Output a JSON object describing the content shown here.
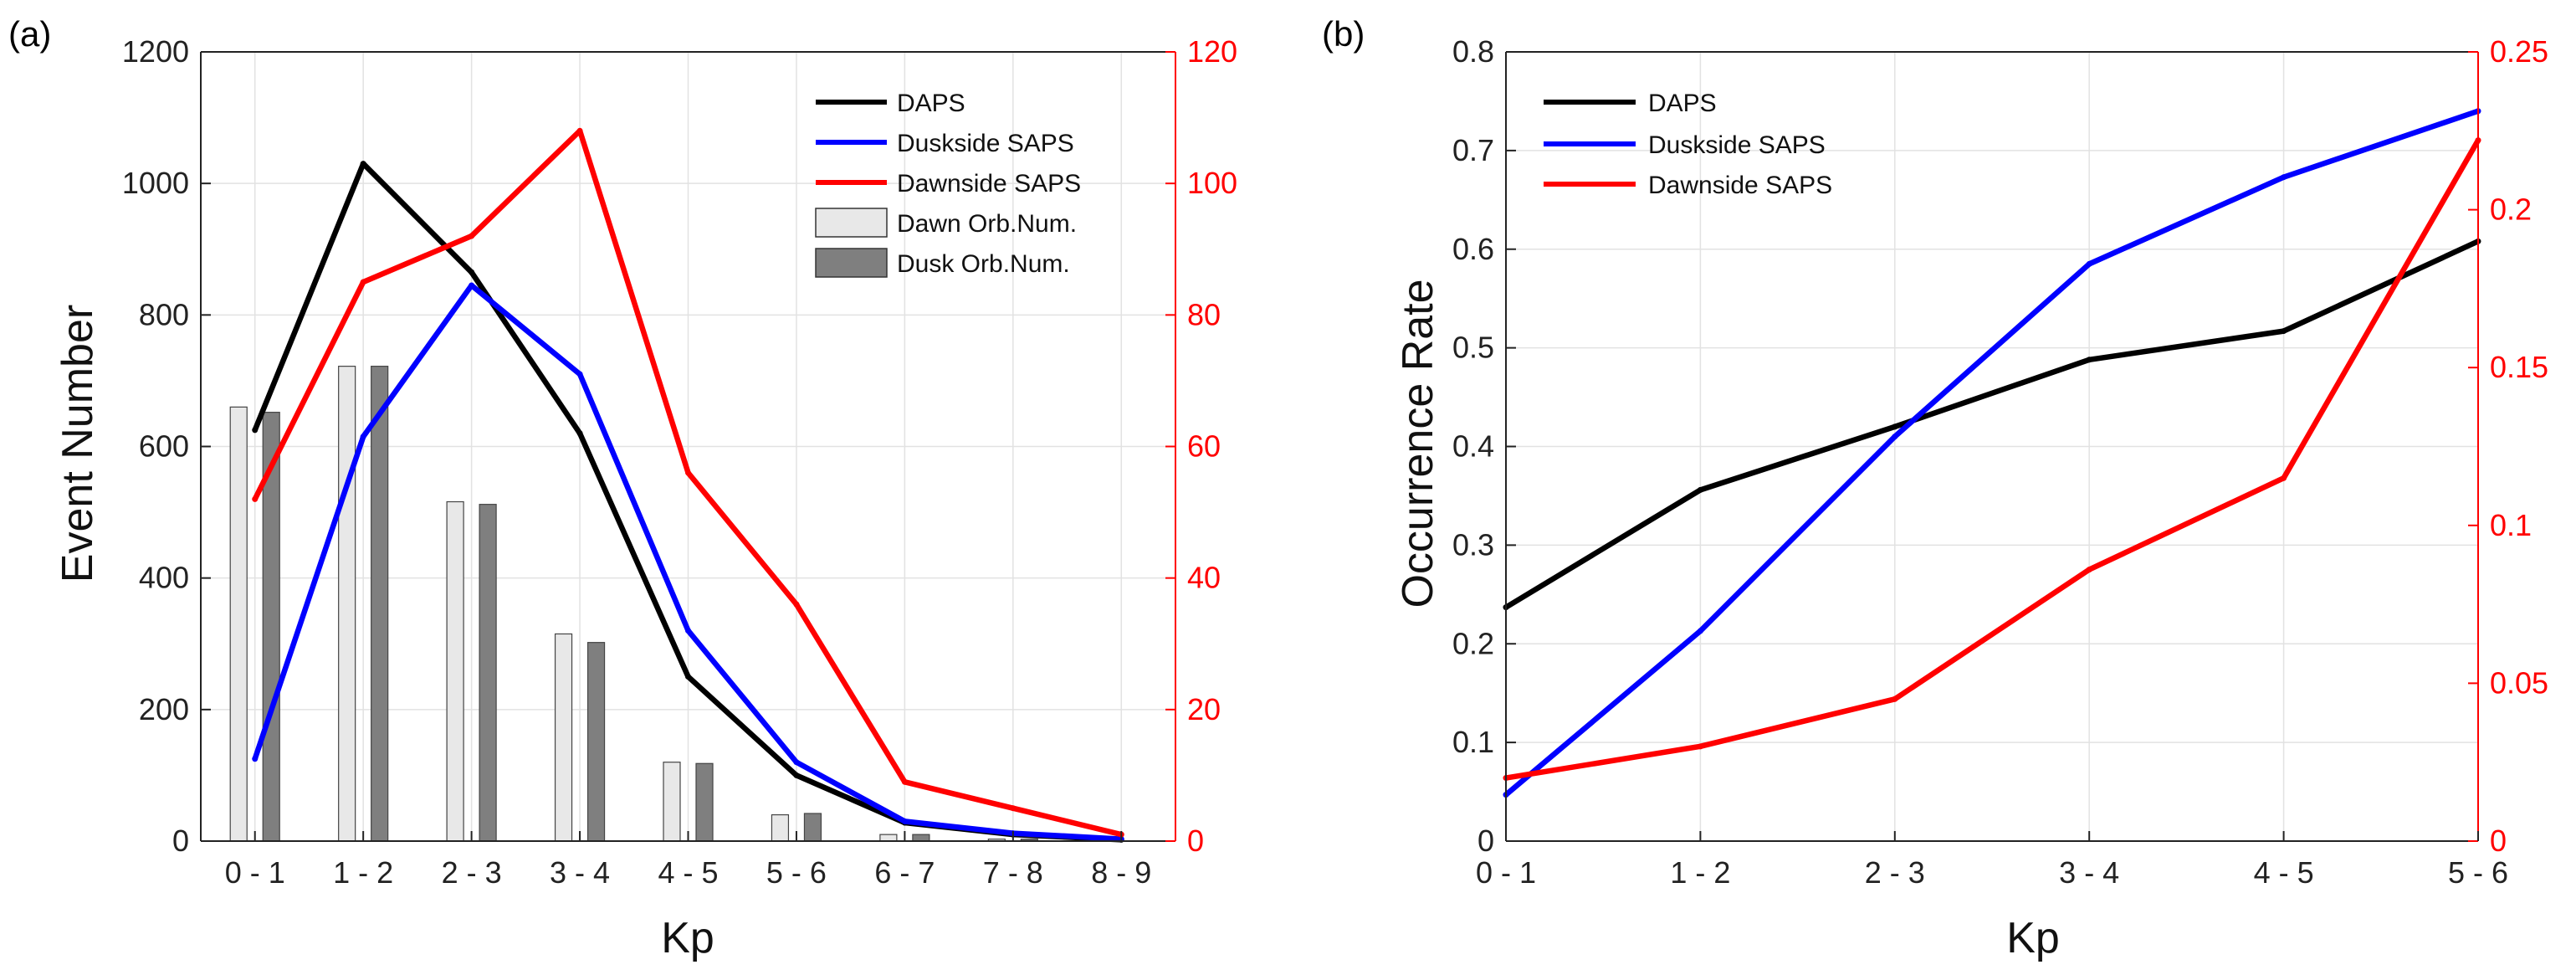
{
  "figure": {
    "colors": {
      "daps": "#000000",
      "dusk": "#0000ff",
      "dawn": "#ff0000",
      "dawn_bar": "#e8e8e8",
      "dusk_bar": "#7f7f7f",
      "grid": "#e2e2e2"
    }
  },
  "chart_data": [
    {
      "panel": "(a)",
      "type": "bar+line",
      "xlabel": "Kp",
      "ylabel": "Event Number",
      "categories": [
        "0 - 1",
        "1 - 2",
        "2 - 3",
        "3 - 4",
        "4 - 5",
        "5 - 6",
        "6 - 7",
        "7 - 8",
        "8 - 9"
      ],
      "ylim": [
        0,
        1200
      ],
      "yticks": [
        "0",
        "200",
        "400",
        "600",
        "800",
        "1000",
        "1200"
      ],
      "y2lim": [
        0,
        120
      ],
      "y2ticks": [
        "0",
        "20",
        "40",
        "60",
        "80",
        "100",
        "120"
      ],
      "series": [
        {
          "name": "DAPS",
          "kind": "line",
          "axis": "left",
          "color": "#000000",
          "values": [
            625,
            1030,
            865,
            620,
            250,
            100,
            28,
            10,
            2
          ]
        },
        {
          "name": "Duskside SAPS",
          "kind": "line",
          "axis": "left",
          "color": "#0000ff",
          "values": [
            125,
            615,
            845,
            710,
            320,
            120,
            30,
            12,
            3
          ]
        },
        {
          "name": "Dawnside SAPS",
          "kind": "line",
          "axis": "right",
          "color": "#ff0000",
          "values": [
            52,
            85,
            92,
            108,
            56,
            36,
            9,
            5,
            1
          ]
        },
        {
          "name": "Dawn Orb.Num.",
          "kind": "bar",
          "axis": "left",
          "color": "#e8e8e8",
          "values": [
            660,
            722,
            516,
            315,
            120,
            40,
            10,
            3,
            0
          ]
        },
        {
          "name": "Dusk Orb.Num.",
          "kind": "bar",
          "axis": "left",
          "color": "#7f7f7f",
          "values": [
            652,
            722,
            512,
            302,
            118,
            42,
            10,
            3,
            0
          ]
        }
      ]
    },
    {
      "panel": "(b)",
      "type": "line",
      "xlabel": "Kp",
      "ylabel": "Occurrence Rate",
      "categories": [
        "0 - 1",
        "1 - 2",
        "2 - 3",
        "3 - 4",
        "4 - 5",
        "5 - 6"
      ],
      "ylim": [
        0,
        0.8
      ],
      "yticks": [
        "0",
        "0.1",
        "0.2",
        "0.3",
        "0.4",
        "0.5",
        "0.6",
        "0.7",
        "0.8"
      ],
      "y2lim": [
        0,
        0.25
      ],
      "y2ticks": [
        "0",
        "0.05",
        "0.1",
        "0.15",
        "0.2",
        "0.25"
      ],
      "series": [
        {
          "name": "DAPS",
          "kind": "line",
          "axis": "left",
          "color": "#000000",
          "values": [
            0.237,
            0.356,
            0.42,
            0.488,
            0.517,
            0.608
          ]
        },
        {
          "name": "Duskside SAPS",
          "kind": "line",
          "axis": "left",
          "color": "#0000ff",
          "values": [
            0.047,
            0.213,
            0.41,
            0.585,
            0.673,
            0.74
          ]
        },
        {
          "name": "Dawnside SAPS",
          "kind": "line",
          "axis": "right",
          "color": "#ff0000",
          "values": [
            0.02,
            0.03,
            0.045,
            0.086,
            0.115,
            0.222
          ]
        }
      ]
    }
  ]
}
